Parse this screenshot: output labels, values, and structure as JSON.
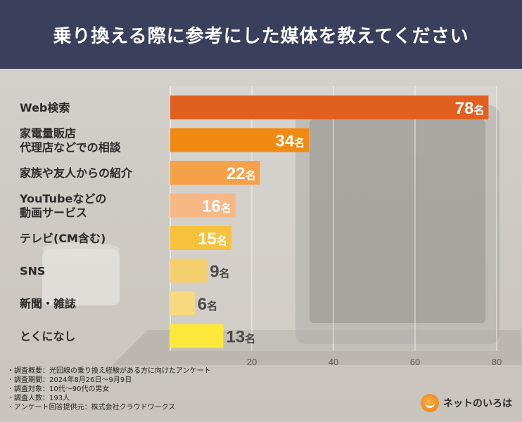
{
  "header": {
    "title": "乗り換える際に参考にした媒体を教えてください"
  },
  "chart_data": {
    "type": "bar",
    "orientation": "horizontal",
    "title": "乗り換える際に参考にした媒体を教えてください",
    "categories": [
      [
        "Web検索"
      ],
      [
        "家電量販店",
        "代理店などでの相談"
      ],
      [
        "家族や友人からの紹介"
      ],
      [
        "YouTubeなどの",
        "動画サービス"
      ],
      [
        "テレビ(CM含む)"
      ],
      [
        "SNS"
      ],
      [
        "新聞・雑誌"
      ],
      [
        "とくになし"
      ]
    ],
    "values": [
      78,
      34,
      22,
      16,
      15,
      9,
      6,
      13
    ],
    "value_suffix": "名",
    "colors": [
      "#e2601f",
      "#f08a12",
      "#f5a14a",
      "#f7b885",
      "#f6c13c",
      "#f5ce6e",
      "#f7d97e",
      "#fbe83a"
    ],
    "xlim": [
      0,
      80
    ],
    "xticks": [
      20,
      40,
      60,
      80
    ],
    "grid": true
  },
  "footer": {
    "lines": [
      "・調査概要：光回線の乗り換え経験がある方に向けたアンケート",
      "・調査期間：2024年8月26日～9月9日",
      "・調査対象：10代～90代の男女",
      "・調査人数：193人",
      "・アンケート回答提供元：株式会社クラウドワークス"
    ]
  },
  "brand": {
    "label": "ネットのいろは",
    "icon": "smile-logo-icon"
  }
}
